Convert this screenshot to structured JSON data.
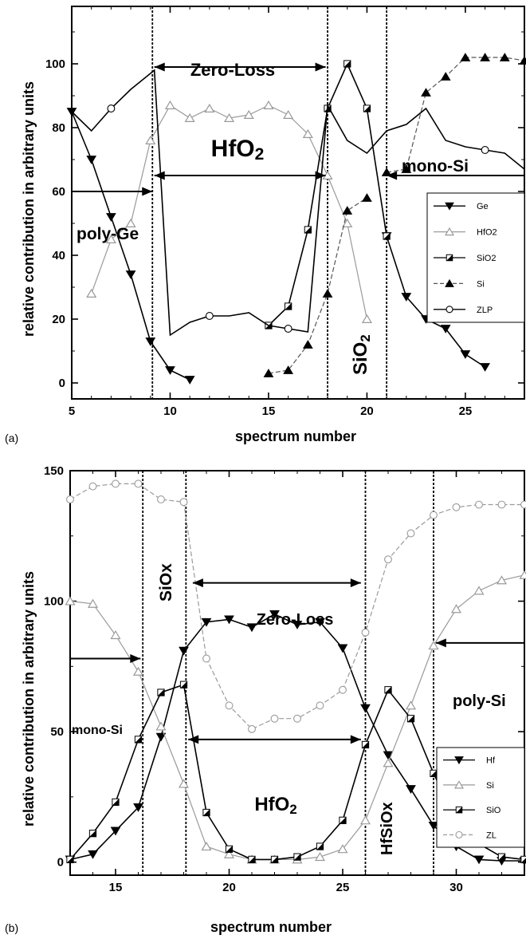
{
  "chart_data": [
    {
      "type": "line",
      "panel_label": "(a)",
      "xlabel": "spectrum number",
      "ylabel": "relative contribution in arbitrary units",
      "xlim": [
        5,
        28
      ],
      "ylim": [
        -5,
        118
      ],
      "xticks": [
        5,
        10,
        15,
        20,
        25
      ],
      "yticks": [
        0,
        20,
        40,
        60,
        80,
        100
      ],
      "vlines": [
        9.1,
        18,
        21
      ],
      "annotations": {
        "zero_loss": "Zero-Loss",
        "hfo2": "HfO2",
        "mono_si": "mono-Si",
        "poly_ge": "poly-Ge",
        "sio2": "SiO2"
      },
      "arrows": [
        {
          "kind": "double",
          "x1": 9.2,
          "x2": 17.9,
          "y": 99
        },
        {
          "kind": "double",
          "x1": 9.2,
          "x2": 17.9,
          "y": 65
        },
        {
          "kind": "single",
          "x1": 5,
          "x2": 9.1,
          "y": 60
        },
        {
          "kind": "single",
          "x1": 28,
          "x2": 21,
          "y": 65
        }
      ],
      "legend_position": "right",
      "series": [
        {
          "name": "Ge",
          "marker": "triangle-down-filled",
          "line": "solid",
          "color": "#000000",
          "x": [
            5,
            6,
            7,
            8,
            9,
            10,
            11
          ],
          "y": [
            85,
            70,
            52,
            34,
            13,
            4,
            1
          ]
        },
        {
          "name": "Ge",
          "marker": "triangle-down-filled",
          "line": "solid",
          "color": "#000000",
          "x": [
            21,
            22,
            23,
            24,
            25,
            26
          ],
          "y": [
            46,
            27,
            20,
            17,
            9,
            5
          ]
        },
        {
          "name": "HfO2",
          "marker": "triangle-up-open",
          "line": "solid",
          "color": "#9a9a9a",
          "x": [
            6,
            7,
            8,
            9,
            10,
            11,
            12,
            13,
            14,
            15,
            16,
            17,
            18,
            19,
            20
          ],
          "y": [
            28,
            45,
            50,
            76,
            87,
            83,
            86,
            83,
            84,
            87,
            84,
            78,
            65,
            50,
            20
          ]
        },
        {
          "name": "SiO2",
          "marker": "half-square",
          "line": "solid",
          "color": "#000000",
          "x": [
            15,
            16,
            17,
            18,
            19,
            20,
            21
          ],
          "y": [
            18,
            24,
            48,
            86,
            100,
            86,
            46
          ]
        },
        {
          "name": "Si",
          "marker": "triangle-up-filled",
          "line": "dashed",
          "color": "#555555",
          "x": [
            15,
            16,
            17,
            18,
            19,
            20
          ],
          "y": [
            3,
            4,
            12,
            28,
            54,
            58
          ]
        },
        {
          "name": "Si",
          "marker": "triangle-up-filled",
          "line": "dashed",
          "color": "#555555",
          "x": [
            21,
            22,
            23,
            24,
            25,
            26,
            27,
            28
          ],
          "y": [
            66,
            67,
            91,
            96,
            102,
            102,
            102,
            101
          ]
        },
        {
          "name": "ZLP",
          "marker": "circle-open",
          "line": "solid",
          "color": "#000000",
          "x": [
            5,
            6,
            7,
            8,
            9,
            9.2,
            10,
            11,
            12,
            13,
            14,
            15,
            16,
            17,
            18,
            19,
            20,
            21,
            22,
            23,
            24,
            25,
            26,
            27,
            28
          ],
          "y": [
            85,
            79,
            86,
            92,
            97,
            98,
            15,
            19,
            21,
            21,
            22,
            18,
            17,
            16,
            87,
            76,
            72,
            79,
            81,
            86,
            76,
            74,
            73,
            72,
            67
          ],
          "marked": [
            false,
            false,
            true,
            false,
            false,
            false,
            false,
            false,
            true,
            false,
            false,
            false,
            true,
            false,
            false,
            false,
            false,
            false,
            false,
            false,
            false,
            false,
            true,
            false,
            false
          ]
        }
      ]
    },
    {
      "type": "line",
      "panel_label": "(b)",
      "xlabel": "spectrum number",
      "ylabel": "relative contribution in arbitrary units",
      "xlim": [
        13,
        33
      ],
      "ylim": [
        -5,
        150
      ],
      "xticks": [
        15,
        20,
        25,
        30
      ],
      "yticks": [
        0,
        50,
        100,
        150
      ],
      "vlines": [
        16.2,
        18.1,
        26,
        29
      ],
      "annotations": {
        "zero_loss": "Zero-Loss",
        "hfo2": "HfO2",
        "siox": "SiOx",
        "hfsiox": "HfSiOx",
        "mono_si": "mono-Si",
        "poly_si": "poly-Si"
      },
      "arrows": [
        {
          "kind": "double",
          "x1": 18.4,
          "x2": 25.8,
          "y": 107
        },
        {
          "kind": "double",
          "x1": 18.2,
          "x2": 25.8,
          "y": 47
        },
        {
          "kind": "single",
          "x1": 13,
          "x2": 16.1,
          "y": 78
        },
        {
          "kind": "single",
          "x1": 33,
          "x2": 29.1,
          "y": 84
        }
      ],
      "legend_position": "right",
      "series": [
        {
          "name": "Hf",
          "marker": "triangle-down-filled",
          "line": "solid",
          "color": "#000000",
          "x": [
            13,
            14,
            15,
            16,
            17,
            18,
            19,
            20,
            21,
            22,
            23,
            24,
            25,
            26,
            27,
            28,
            29,
            30,
            31,
            32,
            33
          ],
          "y": [
            1,
            3,
            12,
            21,
            48,
            81,
            92,
            93,
            90,
            95,
            91,
            92,
            82,
            59,
            41,
            28,
            14,
            6,
            1,
            0.5,
            0.5
          ]
        },
        {
          "name": "Si",
          "marker": "triangle-up-open",
          "line": "solid",
          "color": "#9a9a9a",
          "x": [
            13,
            14,
            15,
            16,
            17,
            18,
            19,
            20,
            21,
            22,
            23,
            24,
            25,
            26,
            27,
            28,
            29,
            30,
            31,
            32,
            33
          ],
          "y": [
            100,
            99,
            87,
            73,
            52,
            30,
            6,
            3,
            1,
            1,
            1,
            2,
            5,
            16,
            38,
            60,
            83,
            97,
            104,
            108,
            110
          ]
        },
        {
          "name": "SiO",
          "marker": "half-square",
          "line": "solid",
          "color": "#000000",
          "x": [
            13,
            14,
            15,
            16,
            17,
            18,
            19,
            20,
            21,
            22,
            23,
            24,
            25,
            26,
            27,
            28,
            29,
            30,
            31,
            32,
            33
          ],
          "y": [
            1,
            11,
            23,
            47,
            65,
            68,
            19,
            5,
            1,
            1,
            2,
            6,
            16,
            45,
            66,
            55,
            34,
            16,
            7,
            2,
            1
          ]
        },
        {
          "name": "ZL",
          "marker": "circle-open",
          "line": "dashed",
          "color": "#9a9a9a",
          "x": [
            13,
            14,
            15,
            16,
            17,
            18,
            19,
            20,
            21,
            22,
            23,
            24,
            25,
            26,
            27,
            28,
            29,
            30,
            31,
            32,
            33
          ],
          "y": [
            139,
            144,
            145,
            145,
            139,
            138,
            78,
            60,
            51,
            55,
            55,
            60,
            66,
            88,
            116,
            126,
            133,
            136,
            137,
            137,
            137
          ]
        }
      ]
    }
  ]
}
